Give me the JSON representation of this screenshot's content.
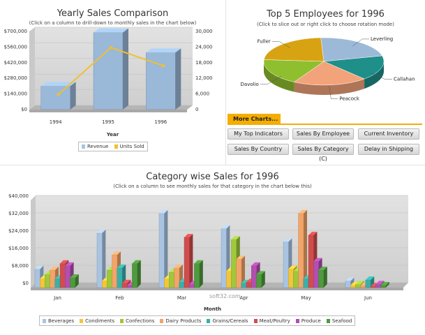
{
  "colors": {
    "revenue": "#a9c4e2",
    "units": "#f0c030",
    "beverages": "#a9c4e2",
    "condiments": "#f2c53d",
    "confections": "#9fc83a",
    "dairy": "#f3a468",
    "grains": "#3ab0a8",
    "meat": "#d14d4d",
    "produce": "#b24fb0",
    "seafood": "#4f9a3d",
    "accent_tab": "#f4ad00"
  },
  "yearly": {
    "title": "Yearly Sales Comparison",
    "subtitle": "(Click on a column to drill-down to monthly sales in the chart below)",
    "xlabel": "Year",
    "legend": [
      "Revenue",
      "Units Sold"
    ]
  },
  "employees": {
    "title": "Top 5 Employees for 1996",
    "subtitle": "(Click to slice out or right click to choose rotation mode)"
  },
  "more_charts": {
    "tab_label": "More Charts...",
    "buttons": [
      "My Top Indicators",
      "Sales By Employee",
      "Current Inventory",
      "Sales By Country",
      "Sales By Category (C)",
      "Delay in Shipping"
    ]
  },
  "category": {
    "title": "Category wise Sales for 1996",
    "subtitle": "(Click on a column to see monthly sales for that category in the chart below this)",
    "xlabel": "Month",
    "legend": [
      "Beverages",
      "Condiments",
      "Confections",
      "Dairy Products",
      "Grains/Cereals",
      "Meat/Poultry",
      "Produce",
      "Seafood"
    ]
  },
  "watermark": "soft32.com",
  "chart_data": [
    {
      "type": "bar",
      "title": "Yearly Sales Comparison",
      "xlabel": "Year",
      "categories": [
        "1994",
        "1995",
        "1996"
      ],
      "series": [
        {
          "name": "Revenue",
          "axis": "left",
          "values": [
            210000,
            690000,
            510000
          ]
        },
        {
          "name": "Units Sold",
          "axis": "right",
          "type": "line",
          "values": [
            5000,
            23000,
            16000
          ]
        }
      ],
      "ylim_left": [
        0,
        700000
      ],
      "yticks_left": [
        "$0",
        "$140,000",
        "$280,000",
        "$420,000",
        "$560,000",
        "$700,000"
      ],
      "ylim_right": [
        0,
        30000
      ],
      "yticks_right": [
        "0",
        "6,000",
        "12,000",
        "18,000",
        "24,000",
        "30,000"
      ]
    },
    {
      "type": "pie",
      "title": "Top 5 Employees for 1996",
      "labels": [
        "Leverling",
        "Callahan",
        "Peacock",
        "Davolio",
        "Fuller"
      ],
      "values": [
        22,
        17,
        20,
        18,
        23
      ],
      "slice_colors": [
        "#9db9d8",
        "#1f8f8a",
        "#f3a37a",
        "#8fbf2f",
        "#d8a312"
      ]
    },
    {
      "type": "bar",
      "title": "Category wise Sales for 1996",
      "xlabel": "Month",
      "categories": [
        "Jan",
        "Feb",
        "Mar",
        "Apr",
        "May",
        "Jun"
      ],
      "ylim": [
        0,
        40000
      ],
      "yticks": [
        "$0",
        "$8,000",
        "$16,000",
        "$24,000",
        "$32,000",
        "$40,000"
      ],
      "series": [
        {
          "name": "Beverages",
          "values": [
            8500,
            25000,
            34000,
            27000,
            21000,
            3000
          ]
        },
        {
          "name": "Condiments",
          "values": [
            4000,
            3000,
            4000,
            7500,
            8500,
            1000
          ]
        },
        {
          "name": "Confections",
          "values": [
            6000,
            8000,
            7000,
            22000,
            7500,
            1500
          ]
        },
        {
          "name": "Dairy Products",
          "values": [
            8000,
            15000,
            9000,
            13000,
            34000,
            1000
          ]
        },
        {
          "name": "Grains/Cereals",
          "values": [
            4000,
            9000,
            2500,
            2000,
            4000,
            3500
          ]
        },
        {
          "name": "Meat/Poultry",
          "values": [
            11000,
            2000,
            23000,
            2500,
            24000,
            500
          ]
        },
        {
          "name": "Produce",
          "values": [
            10000,
            1000,
            1500,
            10000,
            12000,
            1500
          ]
        },
        {
          "name": "Seafood",
          "values": [
            4500,
            11000,
            11000,
            6000,
            8000,
            1000
          ]
        }
      ]
    }
  ]
}
